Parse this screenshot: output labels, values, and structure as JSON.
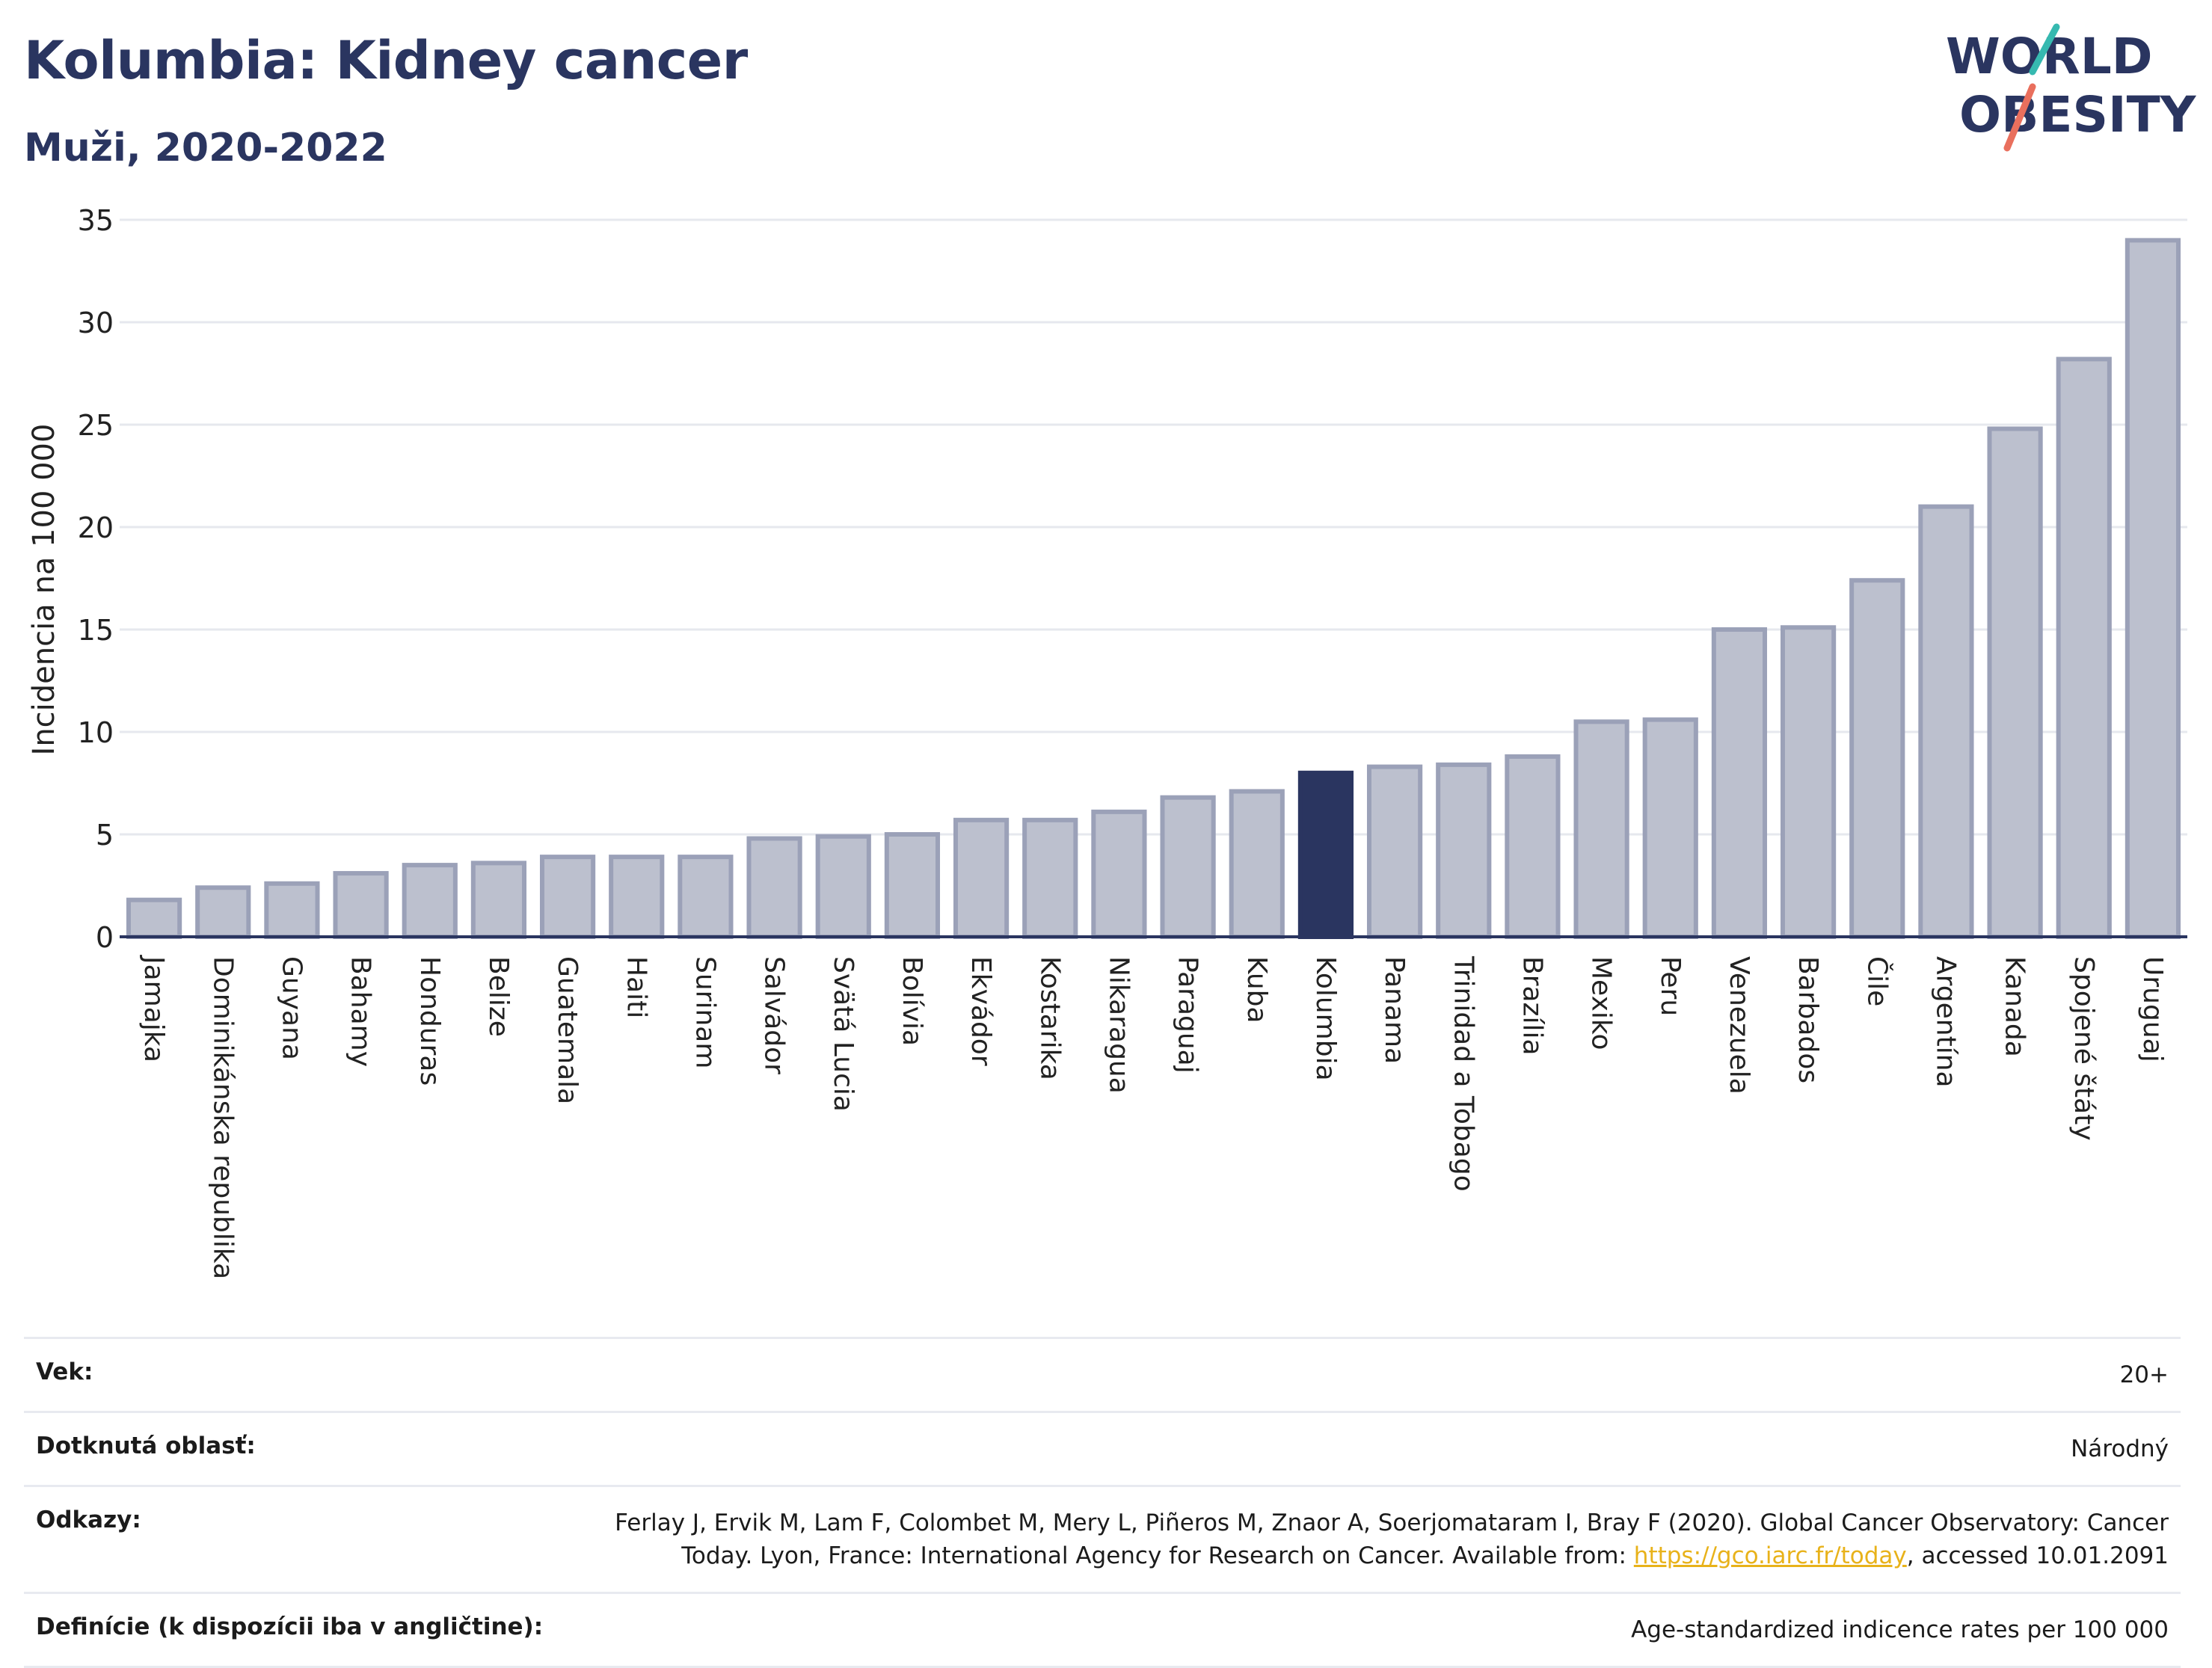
{
  "header": {
    "title": "Kolumbia: Kidney cancer",
    "subtitle": "Muži, 2020-2022"
  },
  "logo": {
    "line1": "WORLD",
    "line2": "OBESITY"
  },
  "chart_data": {
    "type": "bar",
    "title": "Kolumbia: Kidney cancer",
    "subtitle": "Muži, 2020-2022",
    "ylabel": "Incidencia na 100 000",
    "xlabel": "",
    "ylim": [
      0,
      35
    ],
    "yticks": [
      0,
      5,
      10,
      15,
      20,
      25,
      30,
      35
    ],
    "grid": true,
    "highlight": "Kolumbia",
    "colors": {
      "bar": "#bcc0ce",
      "bar_stroke": "#9ba1b8",
      "highlight": "#2a3560",
      "axis": "#2a3560",
      "grid": "#e6e8ee"
    },
    "categories": [
      "Jamajka",
      "Dominikánska republika",
      "Guyana",
      "Bahamy",
      "Honduras",
      "Belize",
      "Guatemala",
      "Haiti",
      "Surinam",
      "Salvádor",
      "Svätá Lucia",
      "Bolívia",
      "Ekvádor",
      "Kostarika",
      "Nikaragua",
      "Paraguaj",
      "Kuba",
      "Kolumbia",
      "Panama",
      "Trinidad a Tobago",
      "Brazília",
      "Mexiko",
      "Peru",
      "Venezuela",
      "Barbados",
      "Čile",
      "Argentína",
      "Kanada",
      "Spojené štáty",
      "Uruguaj"
    ],
    "values": [
      1.8,
      2.4,
      2.6,
      3.1,
      3.5,
      3.6,
      3.9,
      3.9,
      3.9,
      4.8,
      4.9,
      5.0,
      5.7,
      5.7,
      6.1,
      6.8,
      7.1,
      8.0,
      8.3,
      8.4,
      8.8,
      10.5,
      10.6,
      15.0,
      15.1,
      17.4,
      21.0,
      24.8,
      28.2,
      34.0
    ]
  },
  "meta": {
    "age_label": "Vek:",
    "age_value": "20+",
    "area_label": "Dotknutá oblasť:",
    "area_value": "Národný",
    "refs_label": "Odkazy:",
    "refs_text_before": "Ferlay J, Ervik M, Lam F, Colombet M, Mery L, Piñeros M, Znaor A, Soerjomataram I, Bray F (2020). Global Cancer Observatory: Cancer Today. Lyon, France: International Agency for Research on Cancer. Available from: ",
    "refs_link": "https://gco.iarc.fr/today",
    "refs_text_after": ", accessed 10.01.2091",
    "defs_label": "Definície (k dispozícii iba v angličtine):",
    "defs_value": "Age-standardized indicence rates per 100 000"
  }
}
